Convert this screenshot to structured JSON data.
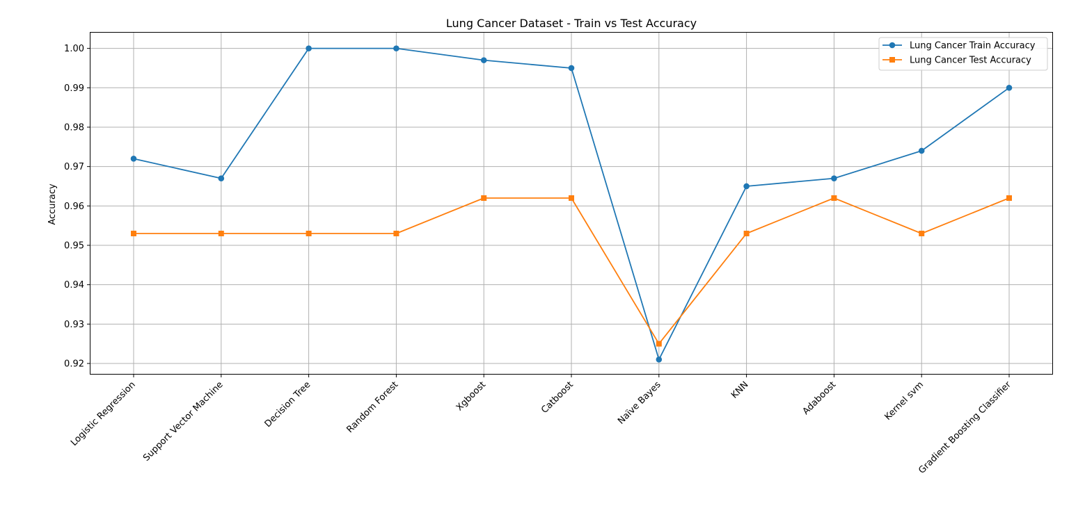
{
  "chart_data": {
    "type": "line",
    "title": "Lung Cancer Dataset - Train vs Test Accuracy",
    "xlabel": "",
    "ylabel": "Accuracy",
    "categories": [
      "Logistic Regression",
      "Support Vector Machine",
      "Decision Tree",
      "Random Forest",
      "Xgboost",
      "Catboost",
      "Naïve Bayes",
      "KNN",
      "Adaboost",
      "Kernel svm",
      "Gradient Boosting Classifier"
    ],
    "ylim": [
      0.917,
      1.004
    ],
    "yticks": [
      0.92,
      0.93,
      0.94,
      0.95,
      0.96,
      0.97,
      0.98,
      0.99,
      1.0
    ],
    "ytick_labels": [
      "0.92",
      "0.93",
      "0.94",
      "0.95",
      "0.96",
      "0.97",
      "0.98",
      "0.99",
      "1.00"
    ],
    "grid": true,
    "legend_position": "top-right",
    "series": [
      {
        "name": "Lung Cancer Train Accuracy",
        "color": "#1f77b4",
        "marker": "circle",
        "values": [
          0.972,
          0.967,
          1.0,
          1.0,
          0.997,
          0.995,
          0.921,
          0.965,
          0.967,
          0.974,
          0.99
        ]
      },
      {
        "name": "Lung Cancer Test Accuracy",
        "color": "#ff7f0e",
        "marker": "square",
        "values": [
          0.953,
          0.953,
          0.953,
          0.953,
          0.962,
          0.962,
          0.925,
          0.953,
          0.962,
          0.953,
          0.962
        ]
      }
    ]
  }
}
